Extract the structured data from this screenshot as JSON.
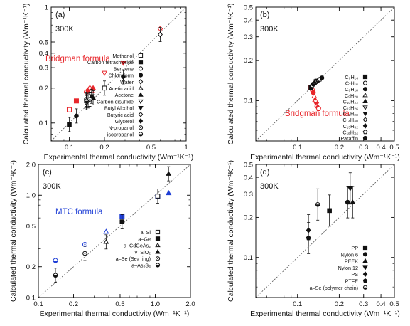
{
  "chart_data": [
    {
      "id": "a",
      "type": "scatter",
      "panel_label": "(a)",
      "temperature_label": "300K",
      "xlabel": "Experimental thermal conductivity (Wm⁻¹K⁻¹)",
      "ylabel": "Calculated thermal conductivity (Wm⁻¹K⁻¹)",
      "scale": "log",
      "xlim": [
        0.07,
        1.0
      ],
      "ylim": [
        0.07,
        1.0
      ],
      "xticks": [
        {
          "v": 0.1,
          "label": "0.1"
        },
        {
          "v": 0.2,
          "label": "0.2"
        },
        {
          "v": 0.5,
          "label": "0.5"
        },
        {
          "v": 1.0,
          "label": "1"
        }
      ],
      "yticks": [
        {
          "v": 0.1,
          "label": "0.1"
        },
        {
          "v": 0.2,
          "label": "0.2"
        },
        {
          "v": 0.3,
          "label": "0.3"
        },
        {
          "v": 0.4,
          "label": "0.4"
        },
        {
          "v": 0.5,
          "label": "0.5"
        },
        {
          "v": 1.0,
          "label": "1"
        }
      ],
      "diagonal": true,
      "annotation": {
        "text": "Bridgman formula",
        "color": "#e8262b"
      },
      "legend_position": "right",
      "series": [
        {
          "name": "Methanol",
          "marker": "square-open",
          "points": [
            [
              0.2,
              0.2
            ]
          ]
        },
        {
          "name": "Carbon tetrachloride",
          "marker": "square",
          "points": [
            [
              0.1,
              0.097
            ]
          ]
        },
        {
          "name": "Benzene",
          "marker": "circle-open",
          "points": [
            [
              0.14,
              0.16
            ]
          ]
        },
        {
          "name": "Chloroform",
          "marker": "circle",
          "points": [
            [
              0.115,
              0.115
            ]
          ]
        },
        {
          "name": "Water",
          "marker": "diamond-open",
          "points": [
            [
              0.6,
              0.58
            ]
          ]
        },
        {
          "name": "Acetic acid",
          "marker": "triangle-open",
          "points": [
            [
              0.15,
              0.16
            ]
          ]
        },
        {
          "name": "Acetone",
          "marker": "triangle",
          "points": [
            [
              0.16,
              0.165
            ]
          ]
        },
        {
          "name": "Carbon disulfide",
          "marker": "triangle-down-open",
          "points": [
            [
              0.145,
              0.155
            ]
          ]
        },
        {
          "name": "Butyl Alcohol",
          "marker": "triangle-down",
          "points": [
            [
              0.155,
              0.17
            ]
          ]
        },
        {
          "name": "Butyric acid",
          "marker": "diamond-open",
          "points": [
            [
              0.14,
              0.15
            ]
          ]
        },
        {
          "name": "Glycerol",
          "marker": "diamond",
          "points": [
            [
              0.29,
              0.25
            ]
          ]
        },
        {
          "name": "N-propanol",
          "marker": "circle-dot",
          "points": [
            [
              0.15,
              0.16
            ]
          ]
        },
        {
          "name": "isopropanol",
          "marker": "circle-half",
          "points": [
            [
              0.14,
              0.155
            ]
          ]
        }
      ],
      "bridgman_points": [
        [
          0.1,
          0.13
        ],
        [
          0.115,
          0.155
        ],
        [
          0.14,
          0.185
        ],
        [
          0.145,
          0.19
        ],
        [
          0.15,
          0.2
        ],
        [
          0.155,
          0.19
        ],
        [
          0.16,
          0.2
        ],
        [
          0.2,
          0.27
        ],
        [
          0.29,
          0.33
        ],
        [
          0.6,
          0.65
        ]
      ]
    },
    {
      "id": "b",
      "type": "scatter",
      "panel_label": "(b)",
      "temperature_label": "300K",
      "xlabel": "Experimental thermal conductivity (Wm⁻¹K⁻¹)",
      "ylabel": "Calculated thermal conductivity (Wm⁻¹K⁻¹)",
      "scale": "log",
      "xlim": [
        0.05,
        0.5
      ],
      "ylim": [
        0.05,
        0.5
      ],
      "xticks": [
        {
          "v": 0.1,
          "label": "0.1"
        },
        {
          "v": 0.2,
          "label": "0.2"
        },
        {
          "v": 0.3,
          "label": "0.3"
        },
        {
          "v": 0.4,
          "label": "0.4"
        },
        {
          "v": 0.5,
          "label": "0.5"
        }
      ],
      "yticks": [
        {
          "v": 0.1,
          "label": "0.1"
        },
        {
          "v": 0.2,
          "label": "0.2"
        },
        {
          "v": 0.3,
          "label": "0.3"
        },
        {
          "v": 0.4,
          "label": "0.4"
        },
        {
          "v": 0.5,
          "label": "0.5"
        }
      ],
      "diagonal": true,
      "annotation": {
        "text": "Bridgman formula",
        "color": "#e8262b"
      },
      "legend_position": "right",
      "series": [
        {
          "name": "C₆H₁₄",
          "marker": "square",
          "points": [
            [
              0.125,
              0.125
            ]
          ]
        },
        {
          "name": "C₇H₁₆",
          "marker": "circle-open",
          "points": [
            [
              0.128,
              0.13
            ]
          ]
        },
        {
          "name": "C₈H₁₈",
          "marker": "circle",
          "points": [
            [
              0.13,
              0.133
            ]
          ]
        },
        {
          "name": "C₉H₂₀",
          "marker": "triangle-open",
          "points": [
            [
              0.132,
              0.136
            ]
          ]
        },
        {
          "name": "C₁₀H₂₂",
          "marker": "triangle",
          "points": [
            [
              0.134,
              0.138
            ]
          ]
        },
        {
          "name": "C₁₂H₂₆",
          "marker": "triangle-down-open",
          "points": [
            [
              0.137,
              0.14
            ]
          ]
        },
        {
          "name": "C₁₃H₂₈",
          "marker": "triangle-down",
          "points": [
            [
              0.139,
              0.141
            ]
          ]
        },
        {
          "name": "C₁₄H₃₀",
          "marker": "diamond-open",
          "points": [
            [
              0.141,
              0.142
            ]
          ]
        },
        {
          "name": "C₁₅H₃₂",
          "marker": "diamond",
          "points": [
            [
              0.143,
              0.143
            ]
          ]
        },
        {
          "name": "C₁₆H₃₄",
          "marker": "pentagon-open",
          "points": [
            [
              0.145,
              0.144
            ]
          ]
        },
        {
          "name": "Paraffin",
          "marker": "circle",
          "points": [
            [
              0.15,
              0.148
            ]
          ]
        }
      ],
      "bridgman_points": [
        [
          0.125,
          0.125
        ],
        [
          0.128,
          0.12
        ],
        [
          0.13,
          0.115
        ],
        [
          0.132,
          0.108
        ],
        [
          0.134,
          0.102
        ],
        [
          0.135,
          0.098
        ],
        [
          0.137,
          0.094
        ],
        [
          0.138,
          0.091
        ],
        [
          0.14,
          0.089
        ],
        [
          0.142,
          0.087
        ]
      ]
    },
    {
      "id": "c",
      "type": "scatter",
      "panel_label": "(c)",
      "temperature_label": "300K",
      "xlabel": "Experimental thermal conductivity (Wm⁻¹K⁻¹)",
      "ylabel": "Calculated thermal conductivity (Wm⁻¹K⁻¹)",
      "scale": "log",
      "xlim": [
        0.1,
        2.0
      ],
      "ylim": [
        0.1,
        2.0
      ],
      "xticks": [
        {
          "v": 0.1,
          "label": "0.1"
        },
        {
          "v": 0.2,
          "label": "0.2"
        },
        {
          "v": 0.5,
          "label": "0.5"
        },
        {
          "v": 1.0,
          "label": "1.0"
        },
        {
          "v": 2.0,
          "label": "2.0"
        }
      ],
      "yticks": [
        {
          "v": 0.1,
          "label": "0.1"
        },
        {
          "v": 0.2,
          "label": "0.2"
        },
        {
          "v": 0.5,
          "label": "0.5"
        },
        {
          "v": 1.0,
          "label": "1.0"
        },
        {
          "v": 2.0,
          "label": "2.0"
        }
      ],
      "diagonal": true,
      "annotation": {
        "text": "MTC formula",
        "color": "#1f3fd6"
      },
      "legend_position": "bottom-right",
      "series": [
        {
          "name": "a–Si",
          "marker": "square-open",
          "points": [
            [
              1.05,
              0.98
            ]
          ]
        },
        {
          "name": "a–Ge",
          "marker": "square",
          "points": [
            [
              0.52,
              0.55
            ]
          ]
        },
        {
          "name": "a–CdGeAs₂",
          "marker": "triangle-open",
          "points": [
            [
              0.38,
              0.35
            ]
          ]
        },
        {
          "name": "v–SiO₂",
          "marker": "triangle",
          "points": [
            [
              1.3,
              1.62
            ]
          ]
        },
        {
          "name": "a–Se (Se₈ ring)",
          "marker": "circle-dot",
          "points": [
            [
              0.25,
              0.27
            ]
          ]
        },
        {
          "name": "a–As₂S₃",
          "marker": "circle-half",
          "points": [
            [
              0.14,
              0.165
            ]
          ]
        }
      ],
      "mtc_points": [
        [
          1.05,
          0.98
        ],
        [
          0.52,
          0.62
        ],
        [
          0.38,
          0.44
        ],
        [
          1.3,
          1.05
        ],
        [
          0.25,
          0.33
        ],
        [
          0.14,
          0.23
        ]
      ]
    },
    {
      "id": "d",
      "type": "scatter",
      "panel_label": "(d)",
      "temperature_label": "300K",
      "xlabel": "Experimental thermal conductivity (Wm⁻¹K⁻¹)",
      "ylabel": "Calculated thermal conductivity (Wm⁻¹K⁻¹)",
      "scale": "log",
      "xlim": [
        0.05,
        0.5
      ],
      "ylim": [
        0.05,
        0.5
      ],
      "xticks": [
        {
          "v": 0.1,
          "label": "0.1"
        },
        {
          "v": 0.2,
          "label": "0.2"
        },
        {
          "v": 0.3,
          "label": "0.3"
        },
        {
          "v": 0.4,
          "label": "0.4"
        },
        {
          "v": 0.5,
          "label": "0.5"
        }
      ],
      "yticks": [
        {
          "v": 0.1,
          "label": "0.1"
        },
        {
          "v": 0.2,
          "label": "0.2"
        },
        {
          "v": 0.3,
          "label": "0.3"
        },
        {
          "v": 0.4,
          "label": "0.4"
        },
        {
          "v": 0.5,
          "label": "0.5"
        }
      ],
      "diagonal": true,
      "legend_position": "bottom-right",
      "series": [
        {
          "name": "PP",
          "marker": "square",
          "points": [
            [
              0.17,
              0.225
            ]
          ]
        },
        {
          "name": "Nylon 6",
          "marker": "circle",
          "points": [
            [
              0.23,
              0.26
            ]
          ]
        },
        {
          "name": "PEEK",
          "marker": "triangle",
          "points": [
            [
              0.25,
              0.26
            ]
          ]
        },
        {
          "name": "Nylon 12",
          "marker": "triangle-down",
          "points": [
            [
              0.24,
              0.33
            ]
          ]
        },
        {
          "name": "PS",
          "marker": "diamond",
          "points": [
            [
              0.12,
              0.16
            ]
          ]
        },
        {
          "name": "PTFE",
          "marker": "pentagon",
          "points": [
            [
              0.12,
              0.14
            ]
          ]
        },
        {
          "name": "a–Se (polymer chain)",
          "marker": "circle-half",
          "points": [
            [
              0.14,
              0.25
            ]
          ]
        }
      ]
    }
  ]
}
